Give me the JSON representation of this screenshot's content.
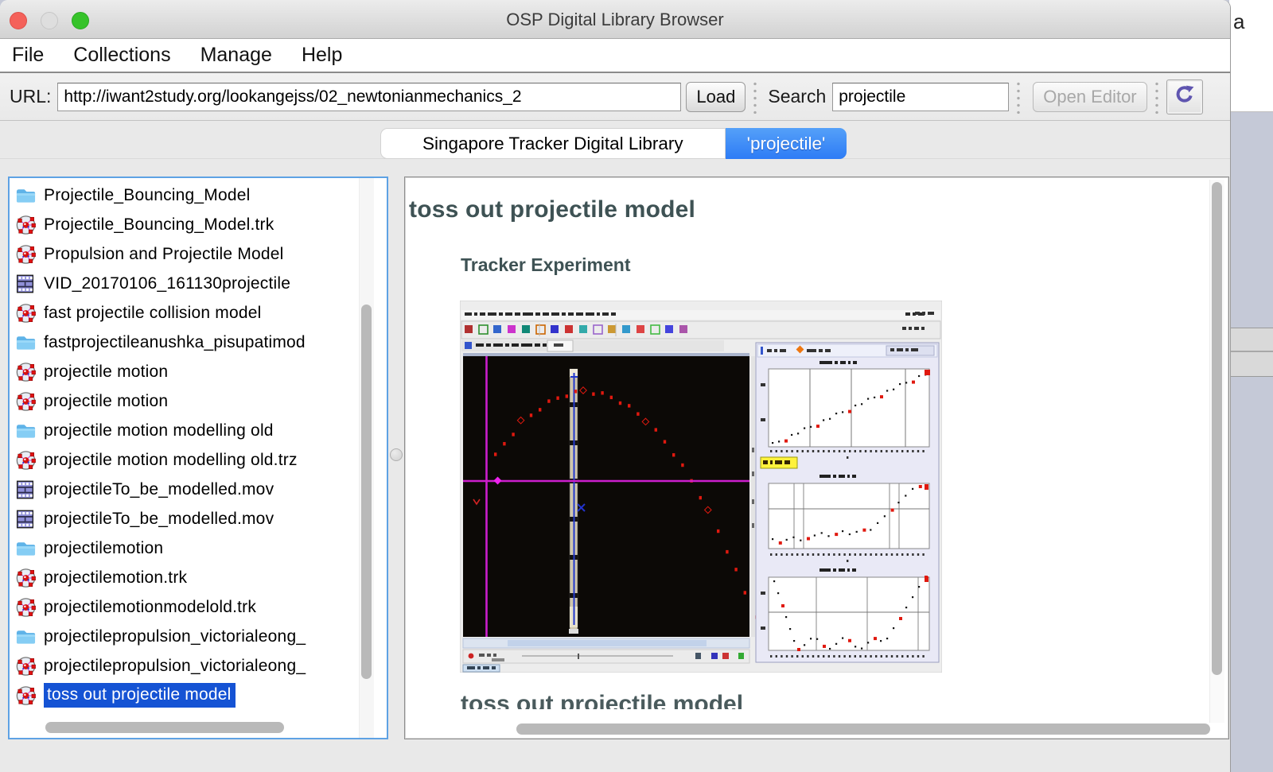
{
  "window": {
    "title": "OSP Digital Library Browser"
  },
  "background_window": {
    "visible_text": "a"
  },
  "menu_bar": {
    "items": [
      "File",
      "Collections",
      "Manage",
      "Help"
    ]
  },
  "toolbar": {
    "url_label": "URL:",
    "url_value": "http://iwant2study.org/lookangejss/02_newtonianmechanics_2",
    "load_button": "Load",
    "search_label": "Search",
    "search_value": "projectile",
    "open_editor_button": "Open Editor",
    "refresh_icon": "refresh-icon"
  },
  "tabs": [
    {
      "label": "Singapore Tracker Digital Library",
      "selected": false
    },
    {
      "label": "'projectile'",
      "selected": true
    }
  ],
  "file_list": {
    "items": [
      {
        "type": "folder",
        "label": "Projectile_Bouncing_Model",
        "selected": false
      },
      {
        "type": "tracker",
        "label": "Projectile_Bouncing_Model.trk",
        "selected": false
      },
      {
        "type": "tracker",
        "label": "Propulsion and Projectile Model",
        "selected": false
      },
      {
        "type": "video",
        "label": "VID_20170106_161130projectile",
        "selected": false
      },
      {
        "type": "tracker",
        "label": "fast projectile collision model",
        "selected": false
      },
      {
        "type": "folder",
        "label": "fastprojectileanushka_pisupatimod",
        "selected": false
      },
      {
        "type": "tracker",
        "label": "projectile motion",
        "selected": false
      },
      {
        "type": "tracker",
        "label": "projectile motion",
        "selected": false
      },
      {
        "type": "folder",
        "label": "projectile motion modelling old",
        "selected": false
      },
      {
        "type": "tracker",
        "label": "projectile motion modelling old.trz",
        "selected": false
      },
      {
        "type": "video",
        "label": "projectileTo_be_modelled.mov",
        "selected": false
      },
      {
        "type": "video",
        "label": "projectileTo_be_modelled.mov",
        "selected": false
      },
      {
        "type": "folder",
        "label": "projectilemotion",
        "selected": false
      },
      {
        "type": "tracker",
        "label": "projectilemotion.trk",
        "selected": false
      },
      {
        "type": "tracker",
        "label": "projectilemotionmodelold.trk",
        "selected": false
      },
      {
        "type": "folder",
        "label": "projectilepropulsion_victorialeong_",
        "selected": false
      },
      {
        "type": "tracker",
        "label": "projectilepropulsion_victorialeong_",
        "selected": false
      },
      {
        "type": "tracker",
        "label": "toss out projectile model",
        "selected": true
      }
    ]
  },
  "detail_pane": {
    "heading": "toss out projectile model",
    "subheading": "Tracker Experiment",
    "bottom_heading_clipped": "toss out projectile model",
    "figure": "tracker-application-screenshot"
  },
  "colors": {
    "accent": "#2e7cf6",
    "accent_light": "#55a0f8",
    "selection": "#1553d4",
    "focus_border": "#5ea2e4",
    "heading": "#3e5254",
    "magenta_axes": "#cc1ecc",
    "data_dot_red": "#e0190f",
    "plot_background": "#e9e9f6",
    "highlight_yellow": "#fff23c",
    "refresh_purple": "#5f55b0"
  }
}
